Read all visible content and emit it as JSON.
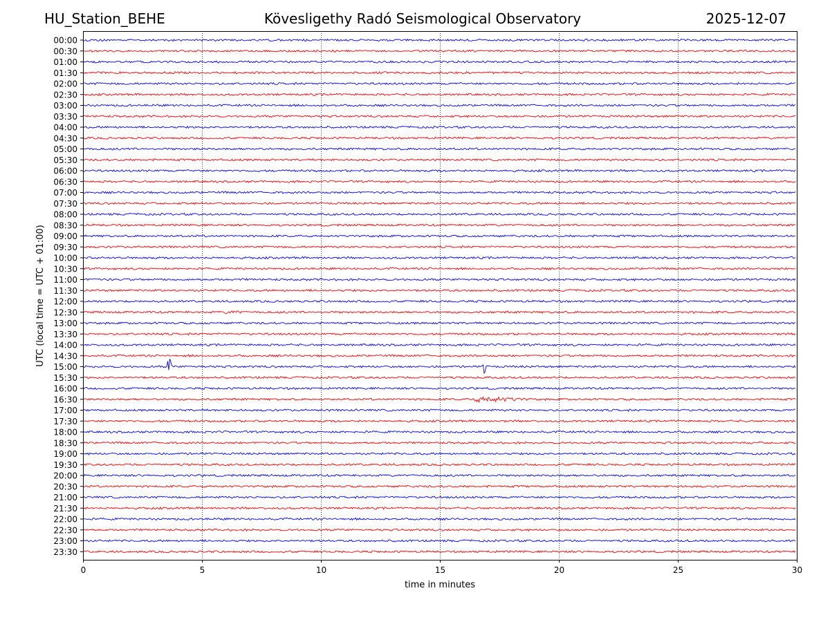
{
  "header": {
    "station": "HU_Station_BEHE",
    "observatory": "Kövesligethy Radó Seismological Observatory",
    "date": "2025-12-07"
  },
  "colors": {
    "even_trace": "#0000ff",
    "odd_trace": "#ff0000",
    "grid": "#000000"
  },
  "chart_data": {
    "type": "line",
    "title": "Kövesligethy Radó Seismological Observatory",
    "xlabel": "time in minutes",
    "ylabel": "UTC (local time = UTC + 01:00)",
    "xlim": [
      0,
      30
    ],
    "x_ticks": [
      "0",
      "5",
      "10",
      "15",
      "20",
      "25",
      "30"
    ],
    "x_tick_values": [
      0,
      5,
      10,
      15,
      20,
      25,
      30
    ],
    "grid": "vertical dotted at x ticks",
    "rows": [
      "00:00",
      "00:30",
      "01:00",
      "01:30",
      "02:00",
      "02:30",
      "03:00",
      "03:30",
      "04:00",
      "04:30",
      "05:00",
      "05:30",
      "06:00",
      "06:30",
      "07:00",
      "07:30",
      "08:00",
      "08:30",
      "09:00",
      "09:30",
      "10:00",
      "10:30",
      "11:00",
      "11:30",
      "12:00",
      "12:30",
      "13:00",
      "13:30",
      "14:00",
      "14:30",
      "15:00",
      "15:30",
      "16:00",
      "16:30",
      "17:00",
      "17:30",
      "18:00",
      "18:30",
      "19:00",
      "19:30",
      "20:00",
      "20:30",
      "21:00",
      "21:30",
      "22:00",
      "22:30",
      "23:00",
      "23:30"
    ],
    "trace_color_pattern": [
      "blue",
      "red"
    ],
    "events": [
      {
        "row": "12:30",
        "start_min": 5.8,
        "end_min": 7.2,
        "amplitude": "small"
      },
      {
        "row": "15:00",
        "start_min": 3.5,
        "end_min": 3.9,
        "amplitude": "spike"
      },
      {
        "row": "15:00",
        "start_min": 16.8,
        "end_min": 17.1,
        "amplitude": "spike"
      },
      {
        "row": "16:30",
        "start_min": 16.0,
        "end_min": 19.5,
        "amplitude": "medium"
      }
    ]
  }
}
